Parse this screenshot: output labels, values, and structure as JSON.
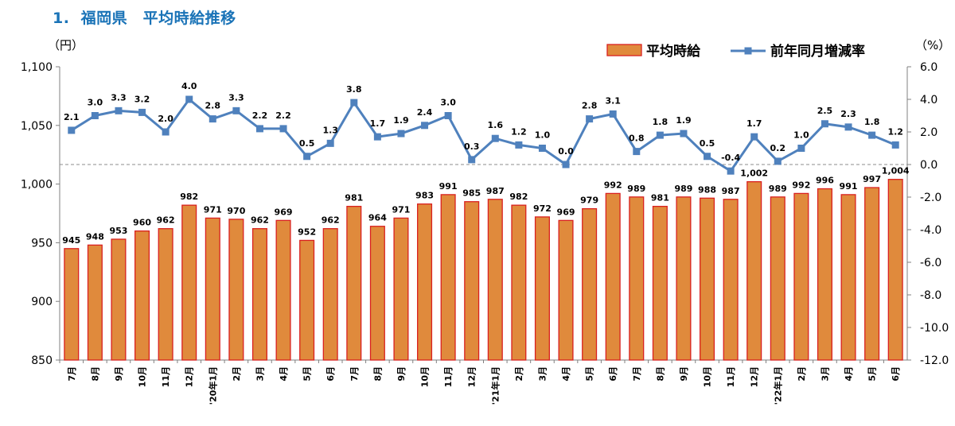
{
  "title": "1.  福岡県　平均時給推移",
  "chart_data": {
    "type": "bar+line",
    "categories": [
      "7月",
      "8月",
      "9月",
      "10月",
      "11月",
      "12月",
      "'20年1月",
      "2月",
      "3月",
      "4月",
      "5月",
      "6月",
      "7月",
      "8月",
      "9月",
      "10月",
      "11月",
      "12月",
      "'21年1月",
      "2月",
      "3月",
      "4月",
      "5月",
      "6月",
      "7月",
      "8月",
      "9月",
      "10月",
      "11月",
      "12月",
      "'22年1月",
      "2月",
      "3月",
      "4月",
      "5月",
      "6月"
    ],
    "series": [
      {
        "name": "平均時給",
        "type": "bar",
        "axis": "left",
        "color": "#e08a3c",
        "border": "#d9201f",
        "values": [
          945,
          948,
          953,
          960,
          962,
          982,
          971,
          970,
          962,
          969,
          952,
          962,
          981,
          964,
          971,
          983,
          991,
          985,
          987,
          982,
          972,
          969,
          979,
          992,
          989,
          981,
          989,
          988,
          987,
          1002,
          989,
          992,
          996,
          991,
          997,
          1004
        ],
        "labels": [
          "945",
          "948",
          "953",
          "960",
          "962",
          "982",
          "971",
          "970",
          "962",
          "969",
          "952",
          "962",
          "981",
          "964",
          "971",
          "983",
          "991",
          "985",
          "987",
          "982",
          "972",
          "969",
          "979",
          "992",
          "989",
          "981",
          "989",
          "988",
          "987",
          "1,002",
          "989",
          "992",
          "996",
          "991",
          "997",
          "1,004"
        ]
      },
      {
        "name": "前年同月増減率",
        "type": "line",
        "axis": "right",
        "color": "#4f81bd",
        "values": [
          2.1,
          3.0,
          3.3,
          3.2,
          2.0,
          4.0,
          2.8,
          3.3,
          2.2,
          2.2,
          0.5,
          1.3,
          3.8,
          1.7,
          1.9,
          2.4,
          3.0,
          0.3,
          1.6,
          1.2,
          1.0,
          0.0,
          2.8,
          3.1,
          0.8,
          1.8,
          1.9,
          0.5,
          -0.4,
          1.7,
          0.2,
          1.0,
          2.5,
          2.3,
          1.8,
          1.2
        ],
        "labels": [
          "2.1",
          "3.0",
          "3.3",
          "3.2",
          "2.0",
          "4.0",
          "2.8",
          "3.3",
          "2.2",
          "2.2",
          "0.5",
          "1.3",
          "3.8",
          "1.7",
          "1.9",
          "2.4",
          "3.0",
          "0.3",
          "1.6",
          "1.2",
          "1.0",
          "0.0",
          "2.8",
          "3.1",
          "0.8",
          "1.8",
          "1.9",
          "0.5",
          "-0.4",
          "1.7",
          "0.2",
          "1.0",
          "2.5",
          "2.3",
          "1.8",
          "1.2"
        ]
      }
    ],
    "y_left": {
      "unit": "（円）",
      "ylim": [
        850,
        1100
      ],
      "ticks": [
        "850",
        "900",
        "950",
        "1,000",
        "1,050",
        "1,100"
      ]
    },
    "y_right": {
      "unit": "（%）",
      "ylim": [
        -12,
        6
      ],
      "ticks": [
        "-12.0",
        "-10.0",
        "-8.0",
        "-6.0",
        "-4.0",
        "-2.0",
        "0.0",
        "2.0",
        "4.0",
        "6.0"
      ]
    },
    "legend": {
      "position": "top-right",
      "entries": [
        "平均時給",
        "前年同月増減率"
      ]
    },
    "grid": false,
    "zero_line": "dashed"
  }
}
